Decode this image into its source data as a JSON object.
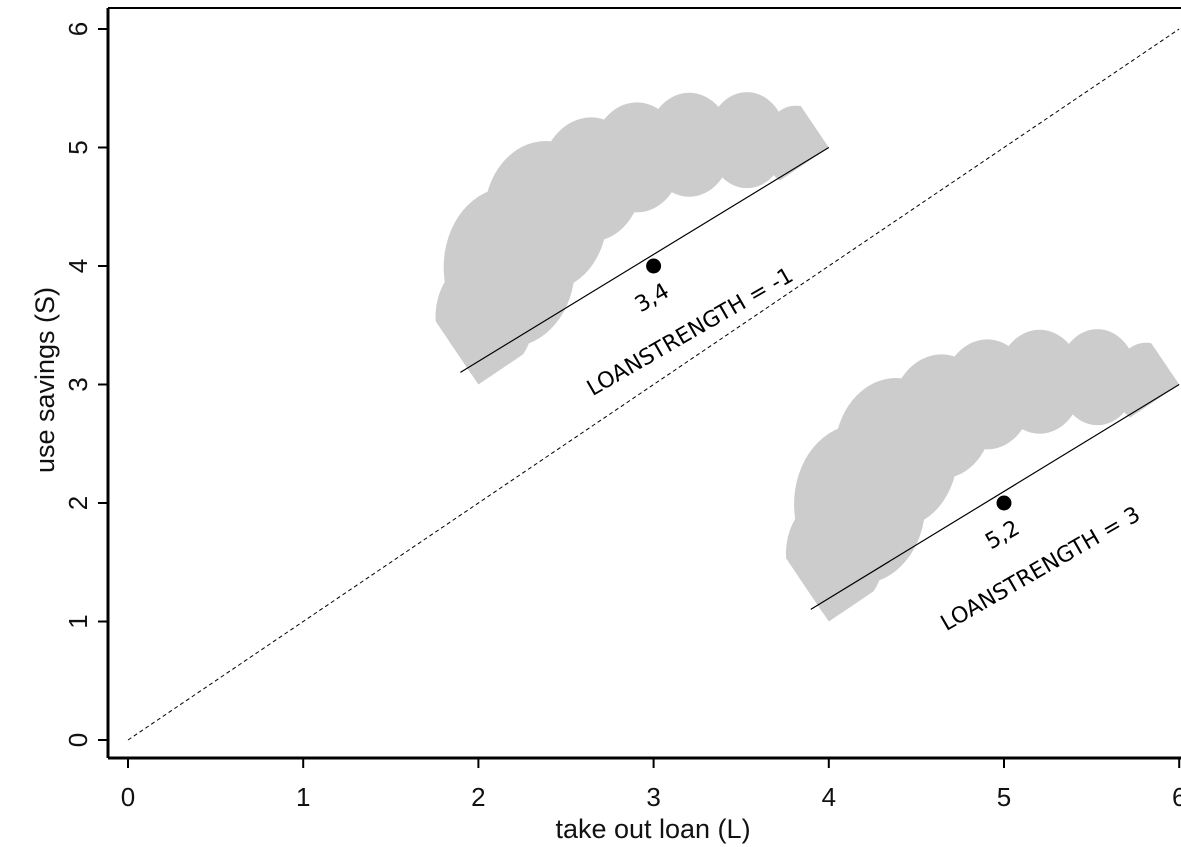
{
  "chart_data": {
    "type": "line",
    "xlabel": "take out loan (L)",
    "ylabel": "use savings (S)",
    "xlim": [
      0,
      6
    ],
    "ylim": [
      0,
      6
    ],
    "x_ticks": [
      "0",
      "1",
      "2",
      "3",
      "4",
      "5",
      "6"
    ],
    "y_ticks": [
      "0",
      "1",
      "2",
      "3",
      "4",
      "5",
      "6"
    ],
    "grid": false,
    "reference_line": {
      "style": "dashed",
      "points": [
        [
          0,
          0
        ],
        [
          6,
          6
        ]
      ]
    },
    "indifference_lines": [
      {
        "x": [
          2,
          4
        ],
        "y": [
          3,
          5
        ],
        "shading": "gray",
        "color": "#cccccc"
      },
      {
        "x": [
          4,
          6
        ],
        "y": [
          1,
          3
        ],
        "shading": "gray",
        "color": "#cccccc"
      }
    ],
    "points": [
      {
        "x": 3,
        "y": 4,
        "label": "3,4",
        "annotation": "LOANSTRENGTH = -1"
      },
      {
        "x": 5,
        "y": 2,
        "label": "5,2",
        "annotation": "LOANSTRENGTH = 3"
      }
    ]
  }
}
